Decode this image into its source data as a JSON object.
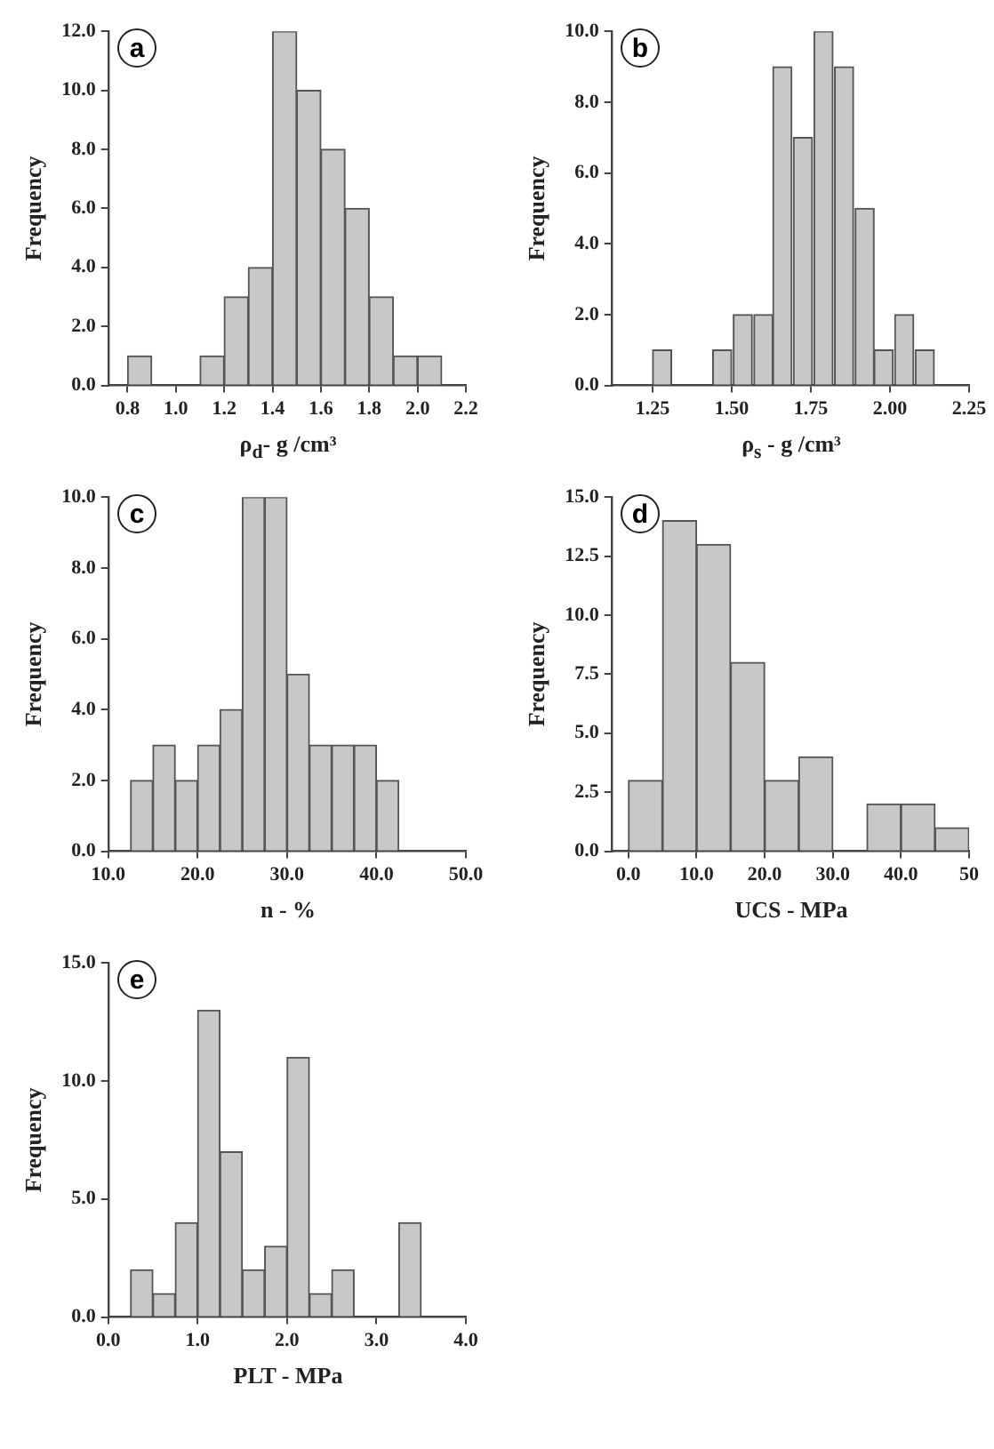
{
  "chart_data": [
    {
      "type": "histogram",
      "annotations": [
        "a"
      ],
      "xlabel": "ρ$_{d}$- g /cm³",
      "ylabel": "Frequency",
      "color": "#c8c8c8",
      "grid": false,
      "legend": false,
      "bins": [
        0.8,
        0.9,
        1.0,
        1.1,
        1.2,
        1.3,
        1.4,
        1.5,
        1.6,
        1.7,
        1.8,
        1.9,
        2.0,
        2.1
      ],
      "values": [
        1,
        0,
        0,
        1,
        3,
        4,
        12,
        10,
        8,
        6,
        3,
        1,
        1
      ],
      "xlim": [
        0.72,
        2.2
      ],
      "xticks": [
        0.8,
        {
          "value": 1.0,
          "label": "1.0"
        },
        1.2,
        1.4,
        1.6,
        1.8,
        {
          "value": 2.0,
          "label": "2.0"
        },
        2.2
      ],
      "ylim": [
        0,
        12
      ],
      "yticks": [
        {
          "value": 0,
          "label": "0.0"
        },
        {
          "value": 2,
          "label": "2.0"
        },
        {
          "value": 4,
          "label": "4.0"
        },
        {
          "value": 6,
          "label": "6.0"
        },
        {
          "value": 8,
          "label": "8.0"
        },
        {
          "value": 10,
          "label": "10.0"
        },
        {
          "value": 12,
          "label": "12.0"
        }
      ]
    },
    {
      "type": "histogram",
      "annotations": [
        "b"
      ],
      "xlabel": "ρ$_{s}$ - g /cm³",
      "ylabel": "Frequency",
      "color": "#c8c8c8",
      "grid": false,
      "legend": false,
      "bins": [
        1.25,
        1.31,
        1.38,
        1.44,
        1.5,
        1.57,
        1.63,
        1.69,
        1.76,
        1.82,
        1.89,
        1.95,
        2.01,
        2.08,
        2.14
      ],
      "values": [
        1,
        0,
        0,
        1,
        2,
        2,
        9,
        7,
        10,
        9,
        5,
        1,
        2,
        1
      ],
      "xlim": [
        1.12,
        2.25
      ],
      "xticks": [
        1.25,
        {
          "value": 1.5,
          "label": "1.50"
        },
        1.75,
        {
          "value": 2.0,
          "label": "2.00"
        },
        2.25
      ],
      "ylim": [
        0,
        10
      ],
      "yticks": [
        {
          "value": 0,
          "label": "0.0"
        },
        {
          "value": 2,
          "label": "2.0"
        },
        {
          "value": 4,
          "label": "4.0"
        },
        {
          "value": 6,
          "label": "6.0"
        },
        {
          "value": 8,
          "label": "8.0"
        },
        {
          "value": 10,
          "label": "10.0"
        }
      ]
    },
    {
      "type": "histogram",
      "annotations": [
        "c"
      ],
      "xlabel": "n - %",
      "ylabel": "Frequency",
      "color": "#c8c8c8",
      "grid": false,
      "legend": false,
      "bins": [
        12.5,
        15,
        17.5,
        20,
        22.5,
        25,
        27.5,
        30,
        32.5,
        35,
        37.5,
        40,
        42.5
      ],
      "values": [
        2,
        3,
        2,
        3,
        4,
        10,
        10,
        5,
        3,
        3,
        3,
        2
      ],
      "xlim": [
        10,
        50
      ],
      "xticks": [
        {
          "value": 10,
          "label": "10.0"
        },
        {
          "value": 20,
          "label": "20.0"
        },
        {
          "value": 30,
          "label": "30.0"
        },
        {
          "value": 40,
          "label": "40.0"
        },
        {
          "value": 50,
          "label": "50.0"
        }
      ],
      "ylim": [
        0,
        10
      ],
      "yticks": [
        {
          "value": 0,
          "label": "0.0"
        },
        {
          "value": 2,
          "label": "2.0"
        },
        {
          "value": 4,
          "label": "4.0"
        },
        {
          "value": 6,
          "label": "6.0"
        },
        {
          "value": 8,
          "label": "8.0"
        },
        {
          "value": 10,
          "label": "10.0"
        }
      ]
    },
    {
      "type": "histogram",
      "annotations": [
        "d"
      ],
      "xlabel": "UCS - MPa",
      "ylabel": "Frequency",
      "color": "#c8c8c8",
      "grid": false,
      "legend": false,
      "bins": [
        0,
        5,
        10,
        15,
        20,
        25,
        30,
        35,
        40,
        45,
        50
      ],
      "values": [
        3,
        14,
        13,
        8,
        3,
        4,
        0,
        2,
        2,
        1
      ],
      "xlim": [
        -2.5,
        50
      ],
      "xticks": [
        {
          "value": 0,
          "label": "0.0"
        },
        {
          "value": 10,
          "label": "10.0"
        },
        {
          "value": 20,
          "label": "20.0"
        },
        {
          "value": 30,
          "label": "30.0"
        },
        {
          "value": 40,
          "label": "40.0"
        },
        {
          "value": 50,
          "label": "50"
        }
      ],
      "ylim": [
        0,
        15
      ],
      "yticks": [
        {
          "value": 0,
          "label": "0.0"
        },
        2.5,
        {
          "value": 5,
          "label": "5.0"
        },
        7.5,
        {
          "value": 10,
          "label": "10.0"
        },
        12.5,
        {
          "value": 15,
          "label": "15.0"
        }
      ]
    },
    {
      "type": "histogram",
      "annotations": [
        "e"
      ],
      "xlabel": "PLT - MPa",
      "ylabel": "Frequency",
      "color": "#c8c8c8",
      "grid": false,
      "legend": false,
      "bins": [
        0.25,
        0.5,
        0.75,
        1.0,
        1.25,
        1.5,
        1.75,
        2.0,
        2.25,
        2.5,
        2.75,
        3.0,
        3.25,
        3.5
      ],
      "values": [
        2,
        1,
        4,
        13,
        7,
        2,
        3,
        11,
        1,
        2,
        0,
        0,
        4
      ],
      "xlim": [
        0,
        4
      ],
      "xticks": [
        {
          "value": 0,
          "label": "0.0"
        },
        {
          "value": 1,
          "label": "1.0"
        },
        {
          "value": 2,
          "label": "2.0"
        },
        {
          "value": 3,
          "label": "3.0"
        },
        {
          "value": 4,
          "label": "4.0"
        }
      ],
      "ylim": [
        0,
        15
      ],
      "yticks": [
        {
          "value": 0,
          "label": "0.0"
        },
        {
          "value": 5,
          "label": "5.0"
        },
        {
          "value": 10,
          "label": "10.0"
        },
        {
          "value": 15,
          "label": "15.0"
        }
      ]
    }
  ]
}
